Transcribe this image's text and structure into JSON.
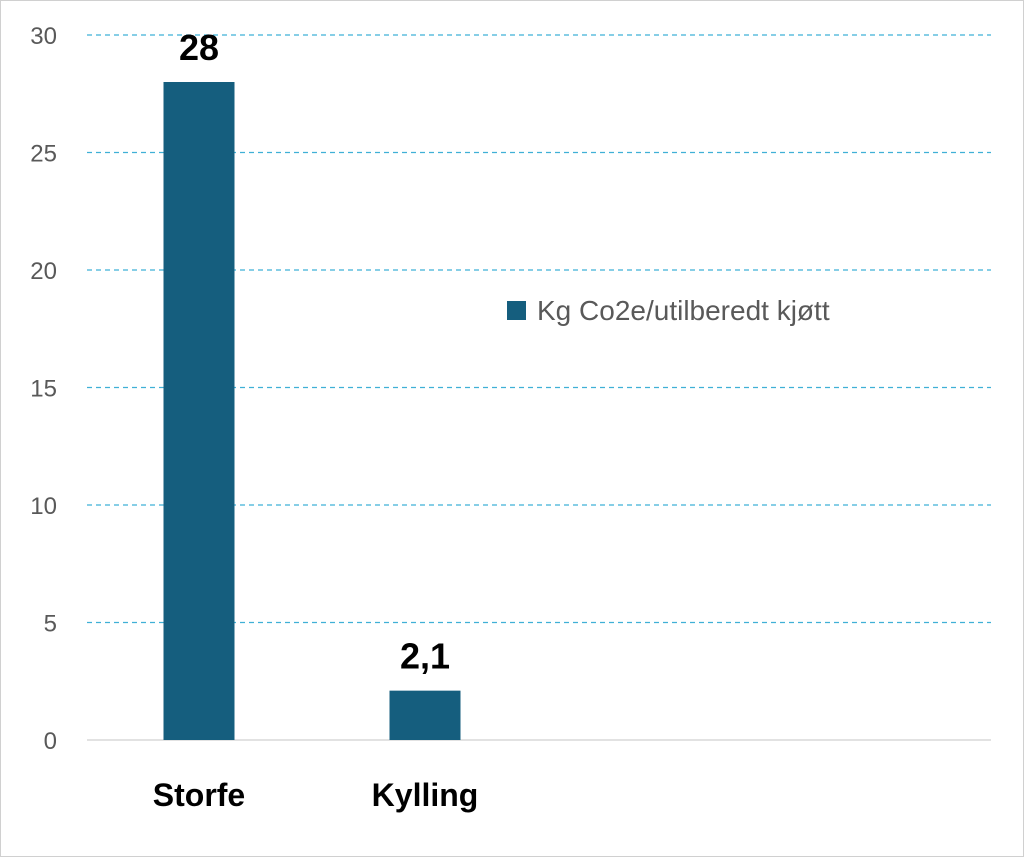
{
  "chart_data": {
    "type": "bar",
    "categories": [
      "Storfe",
      "Kylling"
    ],
    "series": [
      {
        "name": "Kg Co2e/utilberedt kjøtt",
        "values": [
          28,
          2.1
        ],
        "data_labels": [
          "28",
          "2,1"
        ],
        "color": "#155e7e"
      }
    ],
    "ylim": [
      0,
      30
    ],
    "yticks": [
      0,
      5,
      10,
      15,
      20,
      25,
      30
    ],
    "gridlines": "dashed",
    "grid_color": "#3fb0d6",
    "legend_position": "right"
  }
}
